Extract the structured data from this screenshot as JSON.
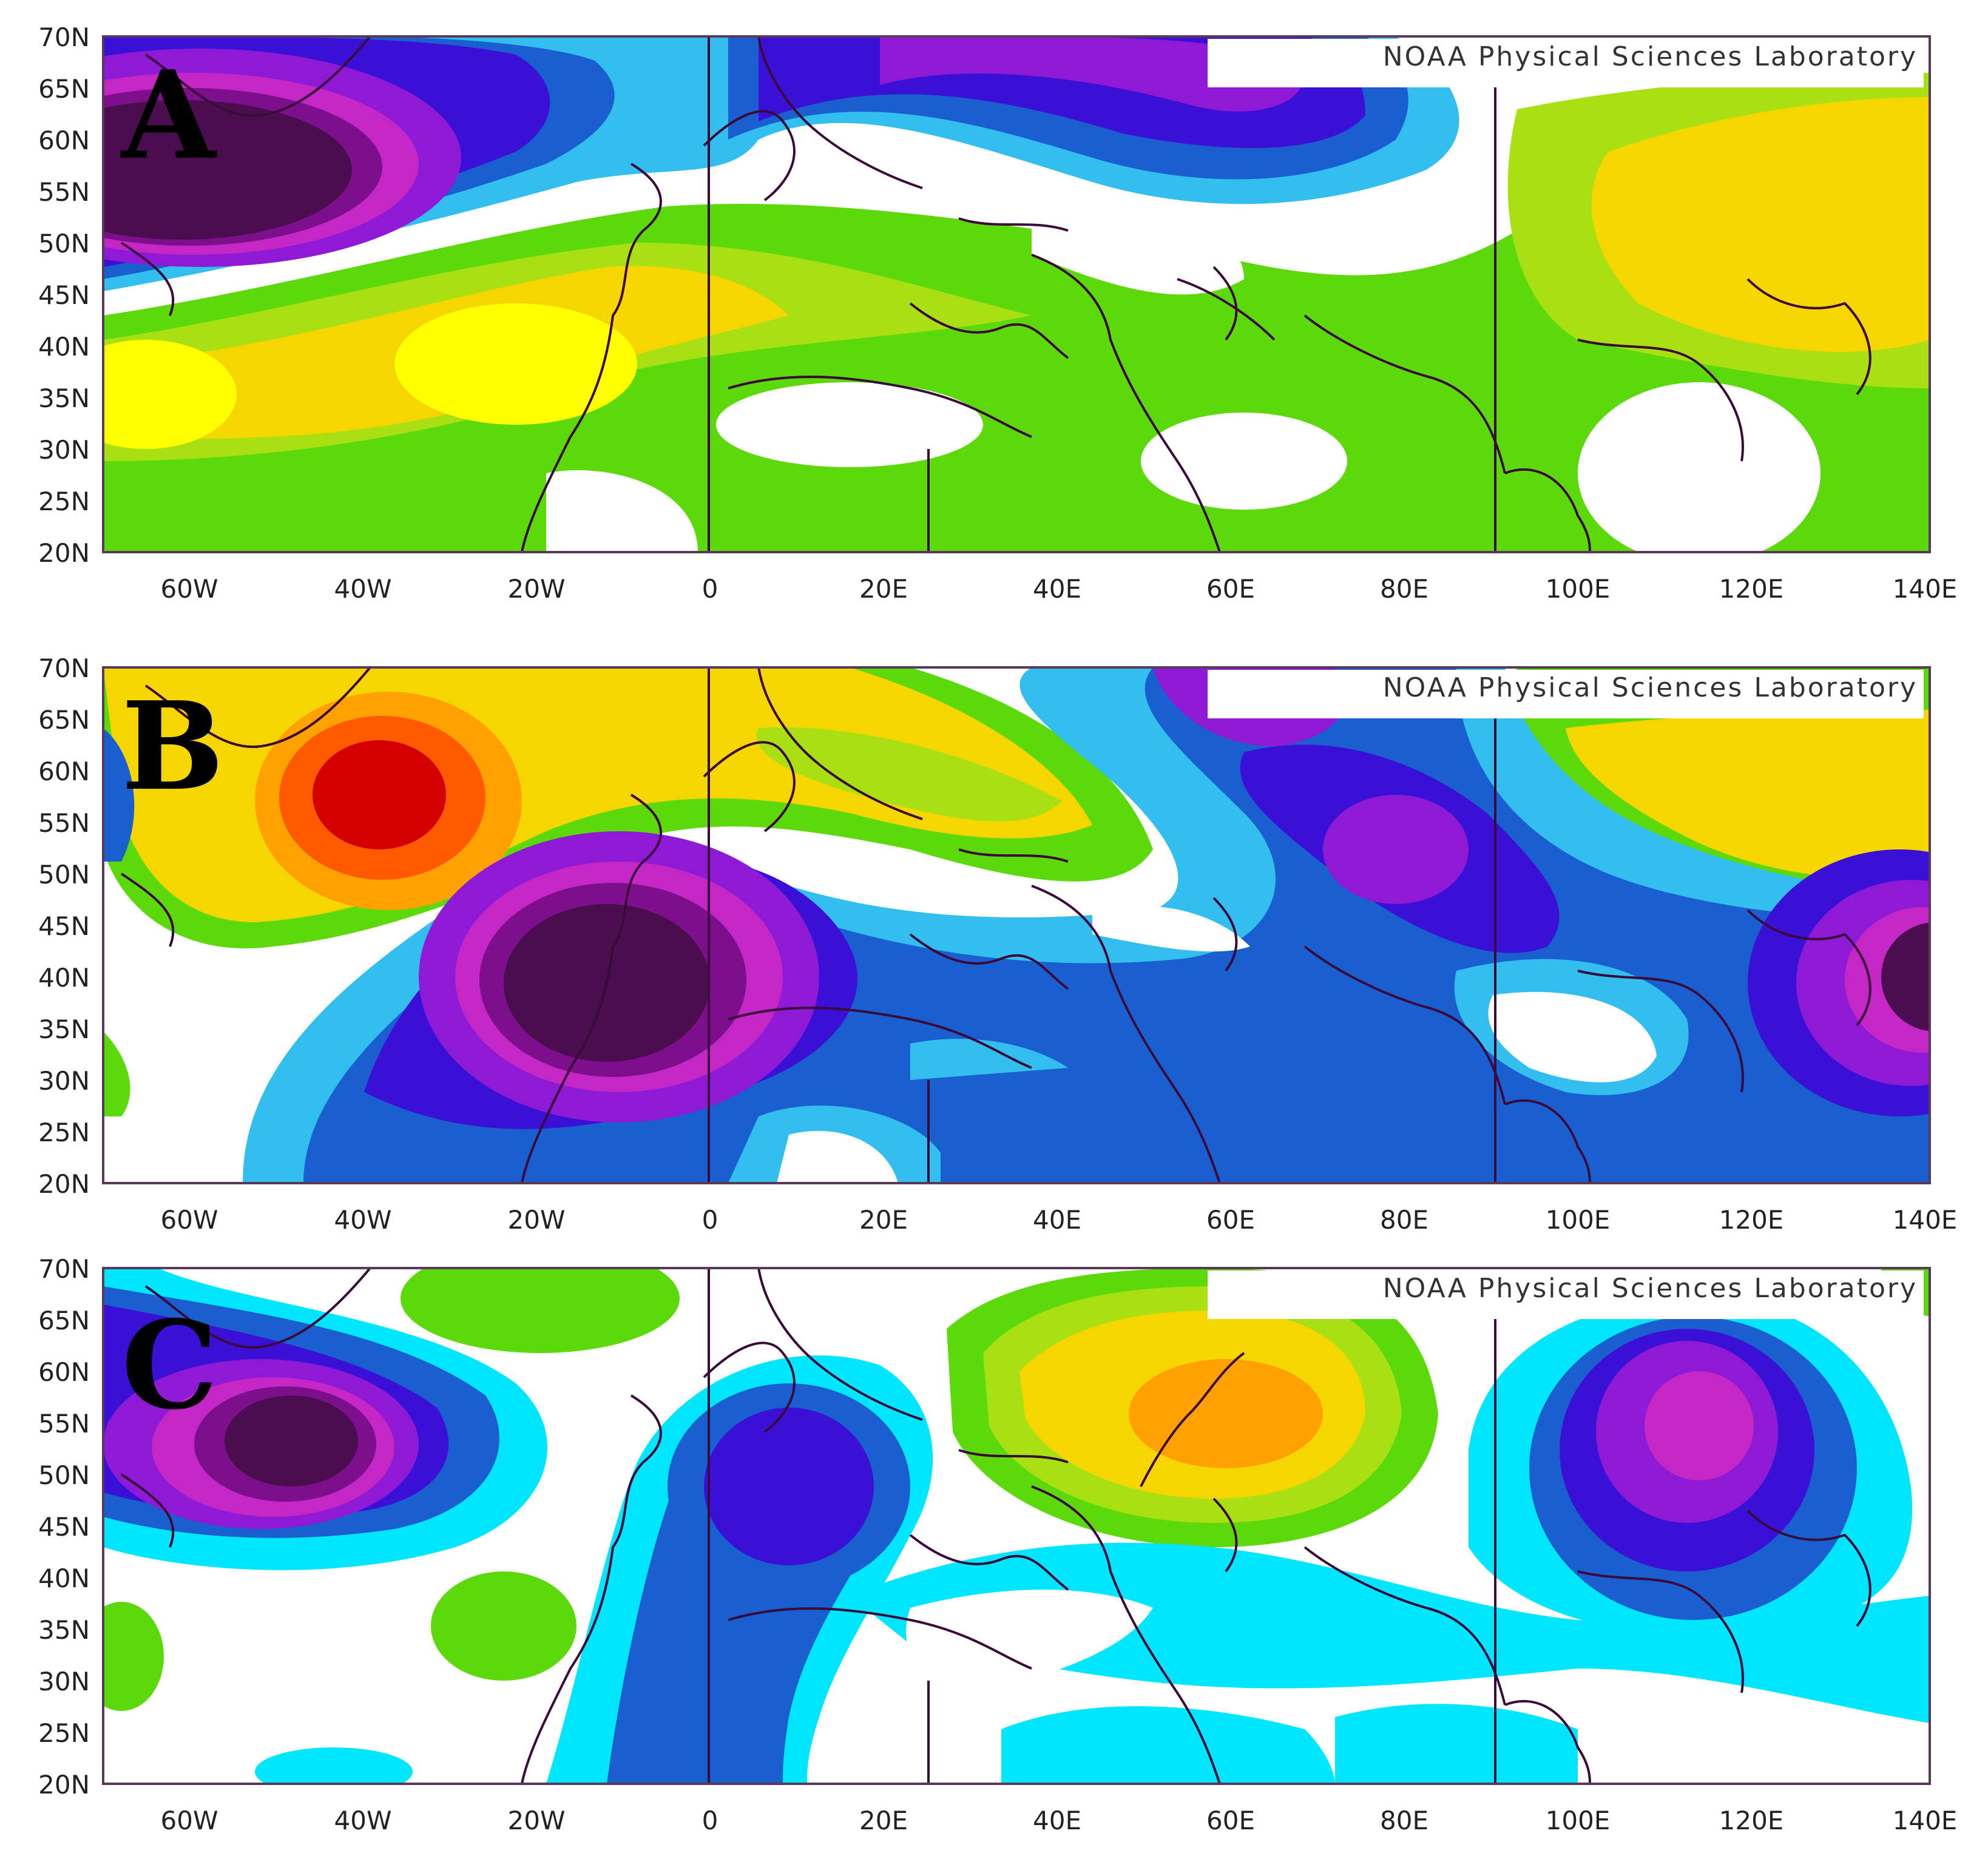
{
  "credit": "NOAA Physical Sciences Laboratory",
  "lat_labels": [
    "70N",
    "65N",
    "60N",
    "55N",
    "50N",
    "45N",
    "40N",
    "35N",
    "30N",
    "25N",
    "20N"
  ],
  "lon_labels": [
    "60W",
    "40W",
    "20W",
    "0",
    "20E",
    "40E",
    "60E",
    "80E",
    "100E",
    "120E",
    "140E"
  ],
  "extent": {
    "lon": [
      -70,
      140
    ],
    "lat": [
      20,
      70
    ]
  },
  "reference_meridians": [
    0,
    25,
    90
  ],
  "palette": {
    "strong_neg": "#4a0d4d",
    "neg4": "#7d0f8c",
    "neg3": "#c427c6",
    "neg2": "#8e1ad6",
    "neg1b": "#3a0fd6",
    "neg1": "#1a5fd0",
    "weak_neg": "#32bff0",
    "weak_neg_c": "#00e6ff",
    "weak_pos": "#5cd90a",
    "pos1": "#a8e014",
    "pos2": "#f5d600",
    "pos3": "#ffff00",
    "pos4": "#ffa100",
    "pos5": "#ff5a00",
    "strong_pos": "#d40000",
    "border": "#3a0a3a"
  },
  "panels": [
    {
      "letter": "A"
    },
    {
      "letter": "B"
    },
    {
      "letter": "C"
    }
  ]
}
